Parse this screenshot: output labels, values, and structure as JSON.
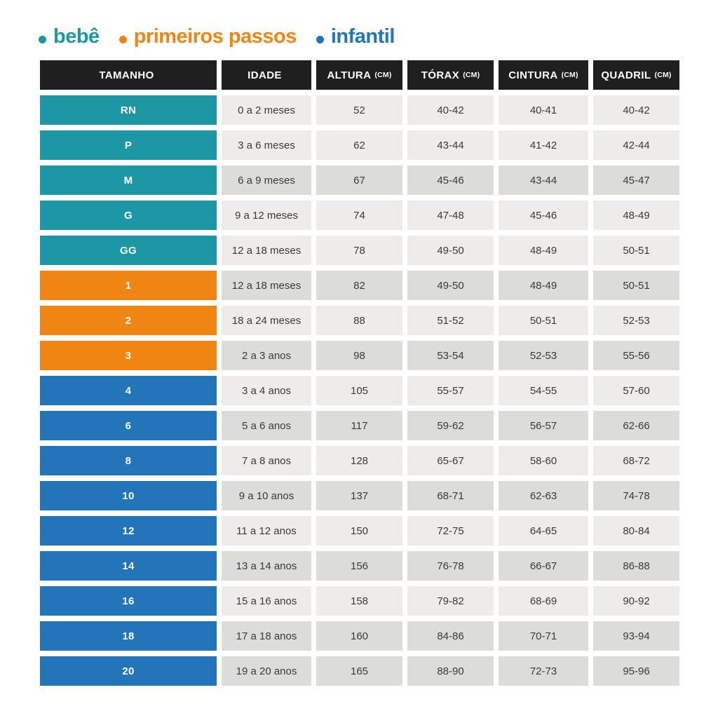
{
  "legend": {
    "items": [
      {
        "label": "bebê",
        "color": "#1d97a4"
      },
      {
        "label": "primeiros passos",
        "color": "#f08514"
      },
      {
        "label": "infantil",
        "color": "#2374b9"
      }
    ]
  },
  "table": {
    "header_bg": "#1f1f1f",
    "header_text": "#ffffff",
    "cell_light": "#edecea",
    "cell_dark": "#dcdcda",
    "cell_text": "#3a3a3a",
    "group_colors": {
      "bebe": "#1d97a4",
      "primeiros_passos": "#f08514",
      "infantil": "#2374b9"
    },
    "headers": [
      {
        "label": "TAMANHO",
        "unit": ""
      },
      {
        "label": "IDADE",
        "unit": ""
      },
      {
        "label": "ALTURA",
        "unit": "(CM)"
      },
      {
        "label": "TÓRAX",
        "unit": "(CM)"
      },
      {
        "label": "CINTURA",
        "unit": "(CM)"
      },
      {
        "label": "QUADRIL",
        "unit": "(CM)"
      }
    ],
    "rows": [
      {
        "size": "RN",
        "group": "bebe",
        "shade": "light",
        "idade": "0 a 2 meses",
        "altura": "52",
        "torax": "40-42",
        "cintura": "40-41",
        "quadril": "40-42"
      },
      {
        "size": "P",
        "group": "bebe",
        "shade": "light",
        "idade": "3 a 6 meses",
        "altura": "62",
        "torax": "43-44",
        "cintura": "41-42",
        "quadril": "42-44"
      },
      {
        "size": "M",
        "group": "bebe",
        "shade": "dark",
        "idade": "6 a 9 meses",
        "altura": "67",
        "torax": "45-46",
        "cintura": "43-44",
        "quadril": "45-47"
      },
      {
        "size": "G",
        "group": "bebe",
        "shade": "light",
        "idade": "9 a 12 meses",
        "altura": "74",
        "torax": "47-48",
        "cintura": "45-46",
        "quadril": "48-49"
      },
      {
        "size": "GG",
        "group": "bebe",
        "shade": "light",
        "idade": "12 a 18 meses",
        "altura": "78",
        "torax": "49-50",
        "cintura": "48-49",
        "quadril": "50-51"
      },
      {
        "size": "1",
        "group": "primeiros_passos",
        "shade": "dark",
        "idade": "12 a 18 meses",
        "altura": "82",
        "torax": "49-50",
        "cintura": "48-49",
        "quadril": "50-51"
      },
      {
        "size": "2",
        "group": "primeiros_passos",
        "shade": "light",
        "idade": "18 a 24 meses",
        "altura": "88",
        "torax": "51-52",
        "cintura": "50-51",
        "quadril": "52-53"
      },
      {
        "size": "3",
        "group": "primeiros_passos",
        "shade": "dark",
        "idade": "2 a 3 anos",
        "altura": "98",
        "torax": "53-54",
        "cintura": "52-53",
        "quadril": "55-56"
      },
      {
        "size": "4",
        "group": "infantil",
        "shade": "light",
        "idade": "3 a 4 anos",
        "altura": "105",
        "torax": "55-57",
        "cintura": "54-55",
        "quadril": "57-60"
      },
      {
        "size": "6",
        "group": "infantil",
        "shade": "dark",
        "idade": "5 a 6 anos",
        "altura": "117",
        "torax": "59-62",
        "cintura": "56-57",
        "quadril": "62-66"
      },
      {
        "size": "8",
        "group": "infantil",
        "shade": "light",
        "idade": "7 a 8 anos",
        "altura": "128",
        "torax": "65-67",
        "cintura": "58-60",
        "quadril": "68-72"
      },
      {
        "size": "10",
        "group": "infantil",
        "shade": "dark",
        "idade": "9 a 10 anos",
        "altura": "137",
        "torax": "68-71",
        "cintura": "62-63",
        "quadril": "74-78"
      },
      {
        "size": "12",
        "group": "infantil",
        "shade": "light",
        "idade": "11 a 12 anos",
        "altura": "150",
        "torax": "72-75",
        "cintura": "64-65",
        "quadril": "80-84"
      },
      {
        "size": "14",
        "group": "infantil",
        "shade": "dark",
        "idade": "13 a 14 anos",
        "altura": "156",
        "torax": "76-78",
        "cintura": "66-67",
        "quadril": "86-88"
      },
      {
        "size": "16",
        "group": "infantil",
        "shade": "light",
        "idade": "15 a 16 anos",
        "altura": "158",
        "torax": "79-82",
        "cintura": "68-69",
        "quadril": "90-92"
      },
      {
        "size": "18",
        "group": "infantil",
        "shade": "dark",
        "idade": "17 a 18 anos",
        "altura": "160",
        "torax": "84-86",
        "cintura": "70-71",
        "quadril": "93-94"
      },
      {
        "size": "20",
        "group": "infantil",
        "shade": "dark",
        "idade": "19 a 20 anos",
        "altura": "165",
        "torax": "88-90",
        "cintura": "72-73",
        "quadril": "95-96"
      }
    ]
  },
  "chart_data": {
    "type": "table",
    "title": "",
    "legend_entries": [
      "bebê",
      "primeiros passos",
      "infantil"
    ],
    "columns": [
      "TAMANHO",
      "IDADE",
      "ALTURA (CM)",
      "TÓRAX (CM)",
      "CINTURA (CM)",
      "QUADRIL (CM)"
    ],
    "rows": [
      [
        "RN",
        "0 a 2 meses",
        "52",
        "40-42",
        "40-41",
        "40-42"
      ],
      [
        "P",
        "3 a 6 meses",
        "62",
        "43-44",
        "41-42",
        "42-44"
      ],
      [
        "M",
        "6 a 9 meses",
        "67",
        "45-46",
        "43-44",
        "45-47"
      ],
      [
        "G",
        "9 a 12 meses",
        "74",
        "47-48",
        "45-46",
        "48-49"
      ],
      [
        "GG",
        "12 a 18 meses",
        "78",
        "49-50",
        "48-49",
        "50-51"
      ],
      [
        "1",
        "12 a 18 meses",
        "82",
        "49-50",
        "48-49",
        "50-51"
      ],
      [
        "2",
        "18 a 24 meses",
        "88",
        "51-52",
        "50-51",
        "52-53"
      ],
      [
        "3",
        "2 a 3 anos",
        "98",
        "53-54",
        "52-53",
        "55-56"
      ],
      [
        "4",
        "3 a 4 anos",
        "105",
        "55-57",
        "54-55",
        "57-60"
      ],
      [
        "6",
        "5 a 6 anos",
        "117",
        "59-62",
        "56-57",
        "62-66"
      ],
      [
        "8",
        "7 a 8 anos",
        "128",
        "65-67",
        "58-60",
        "68-72"
      ],
      [
        "10",
        "9 a 10 anos",
        "137",
        "68-71",
        "62-63",
        "74-78"
      ],
      [
        "12",
        "11 a 12 anos",
        "150",
        "72-75",
        "64-65",
        "80-84"
      ],
      [
        "14",
        "13 a 14 anos",
        "156",
        "76-78",
        "66-67",
        "86-88"
      ],
      [
        "16",
        "15 a 16 anos",
        "158",
        "79-82",
        "68-69",
        "90-92"
      ],
      [
        "18",
        "17 a 18 anos",
        "160",
        "84-86",
        "70-71",
        "93-94"
      ],
      [
        "20",
        "19 a 20 anos",
        "165",
        "88-90",
        "72-73",
        "95-96"
      ]
    ],
    "row_group": [
      "bebe",
      "bebe",
      "bebe",
      "bebe",
      "bebe",
      "primeiros_passos",
      "primeiros_passos",
      "primeiros_passos",
      "infantil",
      "infantil",
      "infantil",
      "infantil",
      "infantil",
      "infantil",
      "infantil",
      "infantil",
      "infantil"
    ]
  }
}
